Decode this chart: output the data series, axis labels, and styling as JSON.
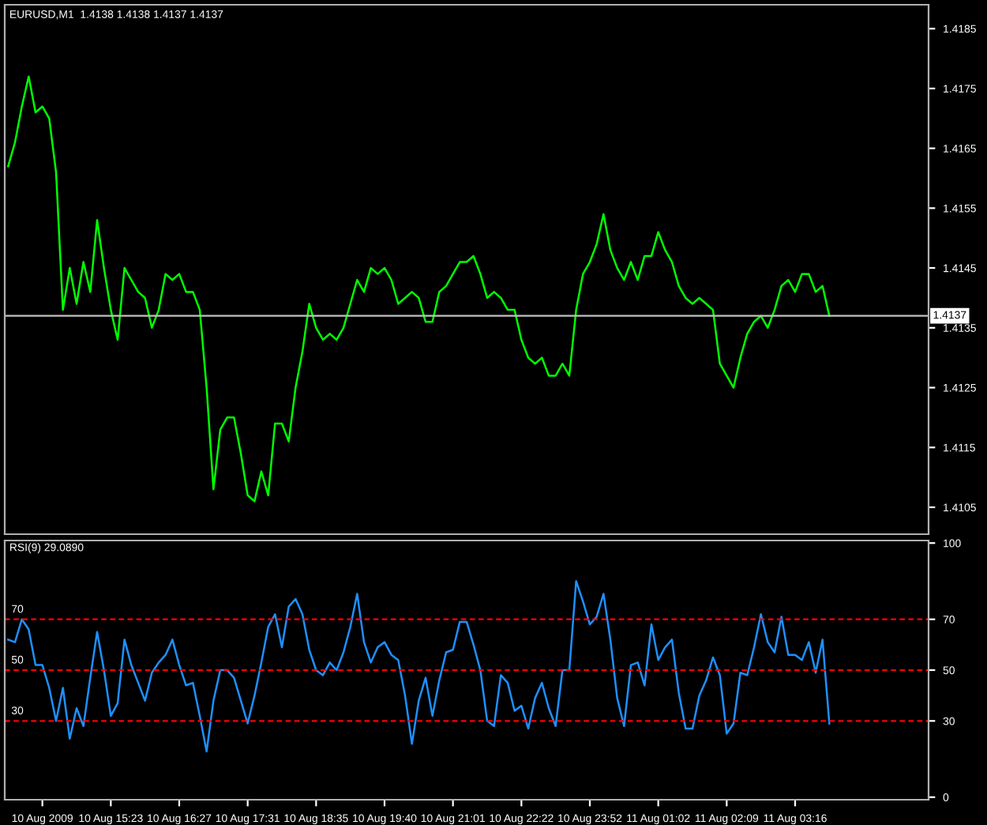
{
  "chart_data": [
    {
      "type": "line",
      "title": "EURUSD,M1  1.4138 1.4138 1.4137 1.4137",
      "ylim": [
        1.41005,
        1.4189
      ],
      "yticks": [
        1.4105,
        1.4115,
        1.4125,
        1.4135,
        1.4145,
        1.4155,
        1.4165,
        1.4175,
        1.4185
      ],
      "tick_labels": "y",
      "line_style": "solid",
      "categories": [
        null,
        null,
        null,
        null,
        null,
        null,
        null,
        null,
        null,
        null,
        null,
        null,
        null,
        null,
        null,
        null,
        null,
        null,
        null,
        null,
        null,
        null,
        null,
        null,
        null,
        null,
        null,
        null,
        null,
        null,
        null,
        null,
        null,
        null,
        null,
        null,
        null,
        null,
        null,
        null,
        null,
        null,
        null,
        null,
        null,
        null,
        null,
        null,
        null,
        null,
        null,
        null,
        null,
        null,
        null,
        null,
        null,
        null,
        null,
        null,
        null,
        null,
        null,
        null,
        null,
        null,
        null,
        null,
        null,
        null,
        null,
        null,
        null,
        null,
        null,
        null,
        null,
        null,
        null,
        null,
        null,
        null,
        null,
        null,
        null,
        null,
        null,
        null,
        null,
        null,
        null,
        null,
        null,
        null,
        null,
        null,
        null,
        null,
        null,
        null,
        null,
        null,
        null,
        null,
        null,
        null,
        null,
        null,
        null,
        null,
        null,
        null,
        null,
        null,
        null,
        null,
        null,
        null,
        null,
        null,
        null,
        null,
        null,
        null,
        null,
        null,
        null,
        null,
        null,
        null,
        null,
        null,
        null,
        null,
        null
      ],
      "ref_lines": [
        {
          "axis": "y",
          "value": 1.4137,
          "label": "1.4137",
          "color": "#c0c0c0",
          "line_style": "solid"
        }
      ],
      "series": [
        {
          "color": "#00ff00",
          "values": [
            1.4162,
            1.4166,
            1.4172,
            1.4177,
            1.4171,
            1.4172,
            1.417,
            1.4161,
            1.4138,
            1.4145,
            1.4139,
            1.4146,
            1.4141,
            1.4153,
            1.4145,
            1.4138,
            1.4133,
            1.4145,
            1.4143,
            1.4141,
            1.414,
            1.4135,
            1.4138,
            1.4144,
            1.4143,
            1.4144,
            1.4141,
            1.4141,
            1.4138,
            1.4125,
            1.4108,
            1.4118,
            1.412,
            1.412,
            1.4114,
            1.4107,
            1.4106,
            1.4111,
            1.4107,
            1.4119,
            1.4119,
            1.4116,
            1.4125,
            1.4131,
            1.4139,
            1.4135,
            1.4133,
            1.4134,
            1.4133,
            1.4135,
            1.4139,
            1.4143,
            1.4141,
            1.4145,
            1.4144,
            1.4145,
            1.4143,
            1.4139,
            1.414,
            1.4141,
            1.414,
            1.4136,
            1.4136,
            1.4141,
            1.4142,
            1.4144,
            1.4146,
            1.4146,
            1.4147,
            1.4144,
            1.414,
            1.4141,
            1.414,
            1.4138,
            1.4138,
            1.4133,
            1.413,
            1.4129,
            1.413,
            1.4127,
            1.4127,
            1.4129,
            1.4127,
            1.4138,
            1.4144,
            1.4146,
            1.4149,
            1.4154,
            1.4148,
            1.4145,
            1.4143,
            1.4146,
            1.4143,
            1.4147,
            1.4147,
            1.4151,
            1.4148,
            1.4146,
            1.4142,
            1.414,
            1.4139,
            1.414,
            1.4139,
            1.4138,
            1.4129,
            1.4127,
            1.4125,
            1.413,
            1.4134,
            1.4136,
            1.4137,
            1.4135,
            1.4138,
            1.4142,
            1.4143,
            1.4141,
            1.4144,
            1.4144,
            1.4141,
            1.4142,
            1.4137,
            null,
            null,
            null,
            null,
            null,
            null,
            null,
            null,
            null,
            null,
            null,
            null,
            null,
            null
          ]
        }
      ]
    },
    {
      "type": "line",
      "title": "RSI(9) 29.0890",
      "ylim": [
        -1,
        101
      ],
      "yticks": [
        0,
        30,
        50,
        70,
        100
      ],
      "line_style": "solid",
      "categories": [
        null,
        null,
        null,
        null,
        null,
        "10 Aug 2009",
        null,
        null,
        null,
        null,
        null,
        null,
        null,
        null,
        null,
        "10 Aug 15:23",
        null,
        null,
        null,
        null,
        null,
        null,
        null,
        null,
        null,
        "10 Aug 16:27",
        null,
        null,
        null,
        null,
        null,
        null,
        null,
        null,
        null,
        "10 Aug 17:31",
        null,
        null,
        null,
        null,
        null,
        null,
        null,
        null,
        null,
        "10 Aug 18:35",
        null,
        null,
        null,
        null,
        null,
        null,
        null,
        null,
        null,
        "10 Aug 19:40",
        null,
        null,
        null,
        null,
        null,
        null,
        null,
        null,
        null,
        "10 Aug 21:01",
        null,
        null,
        null,
        null,
        null,
        null,
        null,
        null,
        null,
        "10 Aug 22:22",
        null,
        null,
        null,
        null,
        null,
        null,
        null,
        null,
        null,
        "10 Aug 23:52",
        null,
        null,
        null,
        null,
        null,
        null,
        null,
        null,
        null,
        "11 Aug 01:02",
        null,
        null,
        null,
        null,
        null,
        null,
        null,
        null,
        null,
        "11 Aug 02:09",
        null,
        null,
        null,
        null,
        null,
        null,
        null,
        null,
        null,
        "11 Aug 03:16",
        null,
        null,
        null,
        null,
        null,
        null,
        null,
        null,
        null,
        null,
        null,
        null,
        null,
        null,
        null,
        null,
        null,
        null,
        null
      ],
      "ref_lines": [
        {
          "axis": "y",
          "value": 70,
          "label": "70",
          "color": "#ff0000",
          "line_style": "dashed"
        },
        {
          "axis": "y",
          "value": 50,
          "label": "50",
          "color": "#ff0000",
          "line_style": "dashed"
        },
        {
          "axis": "y",
          "value": 30,
          "label": "30",
          "color": "#ff0000",
          "line_style": "dashed"
        }
      ],
      "series": [
        {
          "color": "#1e90ff",
          "values": [
            62,
            61,
            70,
            66,
            52,
            52,
            43,
            30,
            43,
            23,
            35,
            28,
            47,
            65,
            50,
            32,
            37,
            62,
            52,
            45,
            38,
            49,
            53,
            56,
            62,
            52,
            44,
            45,
            32,
            18,
            38,
            50,
            50,
            47,
            38,
            29,
            40,
            53,
            67,
            72,
            59,
            75,
            78,
            72,
            58,
            50,
            48,
            53,
            50,
            57,
            67,
            80,
            61,
            53,
            59,
            61,
            56,
            54,
            40,
            21,
            38,
            47,
            32,
            46,
            57,
            58,
            69,
            69,
            60,
            50,
            30,
            28,
            48,
            45,
            34,
            36,
            27,
            39,
            45,
            35,
            28,
            50,
            50,
            85,
            77,
            68,
            71,
            80,
            62,
            39,
            28,
            52,
            53,
            44,
            68,
            54,
            59,
            62,
            41,
            27,
            27,
            40,
            46,
            55,
            48,
            25,
            29,
            49,
            48,
            59,
            72,
            61,
            57,
            71,
            56,
            56,
            54,
            61,
            49,
            62,
            29,
            null,
            null,
            null,
            null,
            null,
            null,
            null,
            null,
            null,
            null,
            null,
            null,
            null,
            null
          ]
        }
      ]
    }
  ]
}
